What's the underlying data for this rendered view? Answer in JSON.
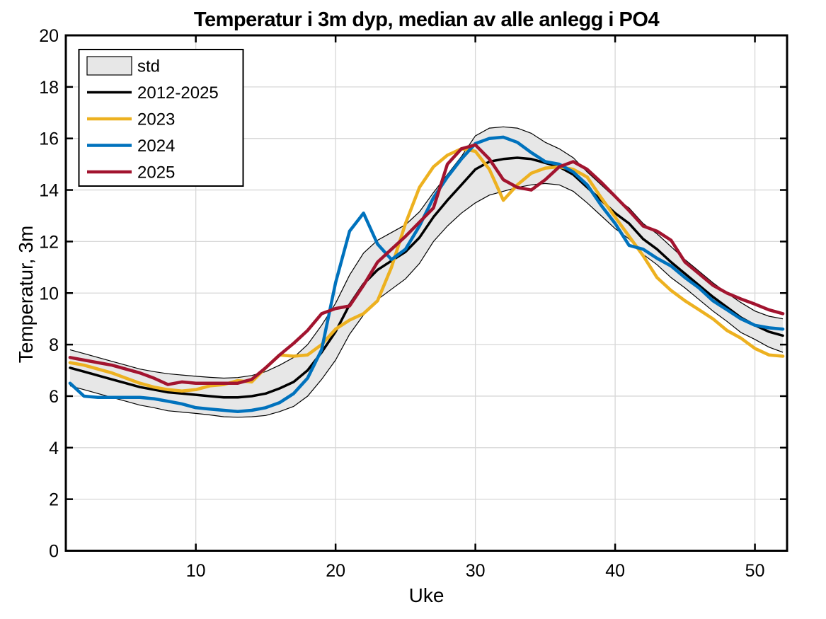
{
  "chart_data": {
    "type": "line",
    "title": "Temperatur i 3m dyp, median av alle anlegg i PO4",
    "xlabel": "Uke",
    "ylabel": "Temperatur, 3m",
    "xlim": [
      0.7,
      52.3
    ],
    "ylim": [
      0,
      20
    ],
    "xticks": [
      10,
      20,
      30,
      40,
      50
    ],
    "yticks": [
      0,
      2,
      4,
      6,
      8,
      10,
      12,
      14,
      16,
      18,
      20
    ],
    "grid": true,
    "grid_color": "#d7d7d7",
    "axis_color": "#000000",
    "background": "#ffffff",
    "x_weeks": [
      1,
      2,
      3,
      4,
      5,
      6,
      7,
      8,
      9,
      10,
      11,
      12,
      13,
      14,
      15,
      16,
      17,
      18,
      19,
      20,
      21,
      22,
      23,
      24,
      25,
      26,
      27,
      28,
      29,
      30,
      31,
      32,
      33,
      34,
      35,
      36,
      37,
      38,
      39,
      40,
      41,
      42,
      43,
      44,
      45,
      46,
      47,
      48,
      49,
      50,
      51,
      52
    ],
    "band": {
      "label": "std",
      "around_series": "2012-2025",
      "fill": "#e7e7e7",
      "edge": "#000000",
      "std_values": [
        0.7,
        0.7,
        0.7,
        0.7,
        0.7,
        0.7,
        0.7,
        0.72,
        0.72,
        0.72,
        0.73,
        0.75,
        0.77,
        0.8,
        0.85,
        0.9,
        0.95,
        1.0,
        1.05,
        1.1,
        1.15,
        1.2,
        1.15,
        1.1,
        1.05,
        1.0,
        0.95,
        1.0,
        1.1,
        1.3,
        1.3,
        1.25,
        1.15,
        1.0,
        0.8,
        0.7,
        0.65,
        0.6,
        0.6,
        0.6,
        0.6,
        0.6,
        0.6,
        0.6,
        0.55,
        0.55,
        0.55,
        0.55,
        0.58,
        0.55,
        0.6,
        0.65
      ]
    },
    "series": [
      {
        "name": "2012-2025",
        "color": "#000000",
        "width": 3.5,
        "values": [
          7.1,
          6.95,
          6.8,
          6.65,
          6.5,
          6.35,
          6.25,
          6.15,
          6.1,
          6.05,
          6.0,
          5.95,
          5.95,
          6.0,
          6.1,
          6.3,
          6.55,
          7.0,
          7.7,
          8.5,
          9.55,
          10.35,
          10.9,
          11.25,
          11.6,
          12.15,
          12.95,
          13.6,
          14.2,
          14.8,
          15.1,
          15.2,
          15.25,
          15.2,
          15.05,
          14.9,
          14.6,
          14.1,
          13.6,
          13.1,
          12.7,
          12.1,
          11.7,
          11.2,
          10.75,
          10.3,
          9.85,
          9.45,
          9.05,
          8.75,
          8.5,
          8.35
        ]
      },
      {
        "name": "2023",
        "color": "#EDB120",
        "width": 4.5,
        "values": [
          7.3,
          7.2,
          7.05,
          6.9,
          6.7,
          6.5,
          6.35,
          6.25,
          6.2,
          6.25,
          6.4,
          6.45,
          6.6,
          6.55,
          7.1,
          7.6,
          7.55,
          7.6,
          8.0,
          8.6,
          8.95,
          9.2,
          9.7,
          11.0,
          12.7,
          14.1,
          14.9,
          15.35,
          15.6,
          15.5,
          14.8,
          13.6,
          14.2,
          14.65,
          14.85,
          14.9,
          14.8,
          14.5,
          13.7,
          12.95,
          12.2,
          11.45,
          10.6,
          10.1,
          9.7,
          9.35,
          9.0,
          8.55,
          8.25,
          7.85,
          7.6,
          7.55
        ]
      },
      {
        "name": "2024",
        "color": "#0072BD",
        "width": 4.5,
        "values": [
          6.5,
          6.0,
          5.95,
          5.95,
          5.95,
          5.95,
          5.9,
          5.8,
          5.7,
          5.55,
          5.5,
          5.45,
          5.4,
          5.45,
          5.55,
          5.75,
          6.1,
          6.7,
          7.8,
          10.4,
          12.4,
          13.1,
          11.9,
          11.3,
          11.7,
          12.6,
          13.7,
          14.5,
          15.2,
          15.8,
          16.0,
          16.05,
          15.85,
          15.45,
          15.1,
          15.0,
          14.7,
          14.2,
          13.4,
          12.7,
          11.85,
          11.7,
          11.35,
          11.05,
          10.6,
          10.2,
          9.7,
          9.35,
          9.0,
          8.75,
          8.65,
          8.6
        ]
      },
      {
        "name": "2025",
        "color": "#A2142F",
        "width": 4.5,
        "values": [
          7.5,
          7.4,
          7.3,
          7.2,
          7.05,
          6.9,
          6.7,
          6.45,
          6.55,
          6.5,
          6.5,
          6.5,
          6.5,
          6.65,
          7.1,
          7.6,
          8.05,
          8.55,
          9.2,
          9.4,
          9.5,
          10.3,
          11.2,
          11.7,
          12.2,
          12.75,
          13.3,
          15.0,
          15.6,
          15.75,
          15.2,
          14.4,
          14.1,
          14.0,
          14.4,
          14.9,
          15.1,
          14.8,
          14.3,
          13.75,
          13.2,
          12.6,
          12.4,
          12.05,
          11.2,
          10.75,
          10.3,
          10.0,
          9.77,
          9.57,
          9.35,
          9.2
        ]
      }
    ],
    "legend": {
      "position": "top-left",
      "entries": [
        {
          "label": "std",
          "type": "patch",
          "color": "#e7e7e7",
          "edge": "#000000"
        },
        {
          "label": "2012-2025",
          "type": "line",
          "color": "#000000"
        },
        {
          "label": "2023",
          "type": "line",
          "color": "#EDB120"
        },
        {
          "label": "2024",
          "type": "line",
          "color": "#0072BD"
        },
        {
          "label": "2025",
          "type": "line",
          "color": "#A2142F"
        }
      ]
    }
  }
}
